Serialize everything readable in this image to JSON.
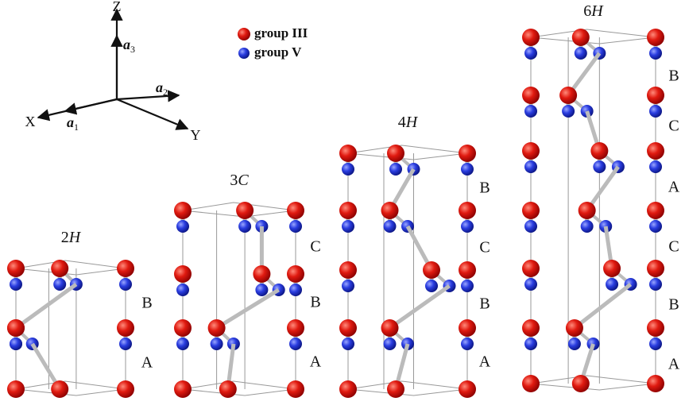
{
  "axes": {
    "z": "Z",
    "x": "X",
    "y": "Y",
    "a1": {
      "symbol": "a",
      "index": "1"
    },
    "a2": {
      "symbol": "a",
      "index": "2"
    },
    "a3": {
      "symbol": "a",
      "index": "3"
    }
  },
  "legend": [
    {
      "label": "group III"
    },
    {
      "label": "group V"
    }
  ],
  "structures": [
    {
      "label": {
        "number": "2",
        "letter": "H"
      },
      "stacking": [
        "B",
        "A"
      ]
    },
    {
      "label": {
        "number": "3",
        "letter": "C"
      },
      "stacking": [
        "C",
        "B",
        "A"
      ]
    },
    {
      "label": {
        "number": "4",
        "letter": "H"
      },
      "stacking": [
        "B",
        "C",
        "B",
        "A"
      ]
    },
    {
      "label": {
        "number": "6",
        "letter": "H"
      },
      "stacking": [
        "B",
        "C",
        "A",
        "C",
        "B",
        "A"
      ]
    }
  ]
}
